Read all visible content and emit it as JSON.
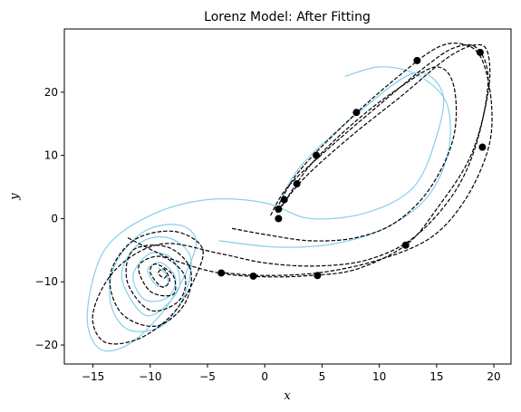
{
  "chart_data": {
    "type": "line",
    "title": "Lorenz Model: After Fitting",
    "xlabel": "x",
    "ylabel": "y",
    "xlim": [
      -17.5,
      21.5
    ],
    "ylim": [
      -23,
      30
    ],
    "xticks": [
      -15,
      -10,
      -5,
      0,
      5,
      10,
      15,
      20
    ],
    "yticks": [
      -20,
      -10,
      0,
      10,
      20
    ],
    "grid": false,
    "legend": false,
    "colors": {
      "fit": "#87ceeb",
      "data": "#000000",
      "points": "#000000"
    },
    "series": [
      {
        "style": "solid",
        "color": "#87ceeb",
        "x": [
          1.0,
          3.0,
          8.0,
          13.0,
          15.5,
          15.0,
          13.0,
          9.0,
          4.0,
          0.0,
          -5.0,
          -10.0,
          -14.0,
          -15.5,
          -14.5,
          -12.0,
          -9.0,
          -7.0,
          -6.0,
          -7.5,
          -10.5,
          -13.0,
          -13.5,
          -12.0,
          -9.0,
          -7.0,
          -6.5,
          -8.5,
          -11.0,
          -12.5,
          -11.0,
          -9.5,
          -7.5,
          -8.0,
          -10.0,
          -11.5,
          -10.5,
          -8.5,
          -7.8,
          -9.0,
          -10.2,
          -9.5,
          -8.5,
          -8.6,
          -9.3,
          -9.0,
          -8.6
        ],
        "y": [
          1.0,
          8.0,
          16.5,
          23.0,
          20.0,
          13.0,
          5.0,
          1.0,
          0.0,
          2.5,
          3.0,
          0.5,
          -5.0,
          -15.0,
          -20.5,
          -20.0,
          -15.0,
          -9.0,
          -3.5,
          -1.0,
          -2.0,
          -7.0,
          -13.0,
          -17.5,
          -17.0,
          -12.0,
          -6.0,
          -3.0,
          -4.0,
          -9.0,
          -14.5,
          -15.0,
          -11.0,
          -6.5,
          -5.5,
          -9.0,
          -12.8,
          -12.5,
          -9.5,
          -7.0,
          -8.0,
          -10.5,
          -10.5,
          -8.8,
          -7.8,
          -8.2,
          -8.6
        ]
      },
      {
        "style": "solid",
        "color": "#87ceeb",
        "x": [
          -4.0,
          1.0,
          6.0,
          10.5,
          14.0,
          15.8,
          16.2,
          15.5,
          13.0,
          10.0,
          7.0
        ],
        "y": [
          -3.5,
          -4.5,
          -4.0,
          -1.5,
          3.0,
          9.0,
          15.0,
          19.5,
          23.0,
          24.0,
          22.5
        ]
      },
      {
        "style": "dashed",
        "color": "#000000",
        "x": [
          0.5,
          2.0,
          5.5,
          10.0,
          14.0,
          16.5,
          18.5,
          19.5,
          18.5,
          16.5,
          13.0,
          9.0,
          4.5,
          0.0,
          -4.0,
          -9.0,
          -13.0,
          -15.0,
          -14.0,
          -11.0,
          -8.0,
          -6.0,
          -5.5,
          -8.0,
          -11.5,
          -13.5,
          -12.5,
          -9.5,
          -7.0,
          -6.5,
          -8.5,
          -11.5,
          -12.0,
          -10.0,
          -7.5,
          -7.0,
          -9.0,
          -11.0,
          -10.0,
          -8.0,
          -8.0,
          -9.5,
          -10.0,
          -9.0,
          -8.3,
          -8.8,
          -9.3,
          -8.8,
          -8.5
        ],
        "y": [
          0.5,
          5.0,
          11.0,
          18.0,
          24.0,
          27.0,
          27.0,
          22.0,
          12.0,
          4.0,
          -3.0,
          -6.5,
          -7.5,
          -7.0,
          -5.5,
          -4.0,
          -8.0,
          -15.0,
          -19.5,
          -19.0,
          -15.0,
          -9.0,
          -4.5,
          -2.0,
          -3.5,
          -9.0,
          -15.0,
          -17.0,
          -13.5,
          -8.0,
          -4.5,
          -5.0,
          -10.0,
          -14.5,
          -13.0,
          -9.0,
          -6.0,
          -7.5,
          -11.5,
          -12.0,
          -9.0,
          -7.2,
          -8.5,
          -10.8,
          -9.8,
          -8.0,
          -8.6,
          -9.4,
          -8.8
        ]
      },
      {
        "style": "dashed",
        "color": "#000000",
        "x": [
          1.0,
          3.0,
          7.0,
          11.0,
          15.0,
          17.5,
          19.0,
          19.8,
          19.5,
          17.5,
          14.5,
          10.0,
          5.0,
          0.0,
          -4.0
        ],
        "y": [
          1.5,
          7.5,
          15.0,
          21.5,
          27.0,
          27.5,
          25.0,
          18.0,
          11.0,
          3.0,
          -3.0,
          -6.5,
          -8.5,
          -9.0,
          -8.5
        ]
      },
      {
        "style": "dashed",
        "color": "#000000",
        "x": [
          1.5,
          4.0,
          8.0,
          12.0,
          15.0,
          16.5,
          16.5,
          14.5,
          11.5,
          8.0,
          4.0,
          0.0,
          -3.0
        ],
        "y": [
          2.0,
          8.5,
          15.5,
          21.0,
          24.0,
          21.0,
          13.0,
          5.0,
          -0.5,
          -3.0,
          -3.5,
          -2.5,
          -1.5
        ]
      },
      {
        "style": "dashed",
        "color": "#000000",
        "x": [
          1.0,
          3.5,
          7.5,
          12.0,
          16.0,
          18.5,
          19.5,
          19.5,
          18.0,
          15.0,
          12.3,
          8.0,
          4.0,
          0.0,
          -4.0,
          -8.0,
          -12.0
        ],
        "y": [
          1.0,
          6.5,
          13.0,
          19.5,
          25.5,
          27.5,
          26.0,
          20.0,
          10.0,
          1.5,
          -4.2,
          -8.0,
          -9.0,
          -9.2,
          -8.6,
          -6.5,
          -3.0
        ]
      }
    ],
    "points": {
      "x": [
        1.2,
        1.2,
        1.7,
        2.8,
        4.5,
        8.0,
        13.3,
        18.8,
        19.0,
        12.3,
        4.6,
        -1.0,
        -3.8
      ],
      "y": [
        0.0,
        1.5,
        3.0,
        5.5,
        10.0,
        16.8,
        25.0,
        26.3,
        11.3,
        -4.2,
        -9.0,
        -9.1,
        -8.6
      ]
    }
  }
}
